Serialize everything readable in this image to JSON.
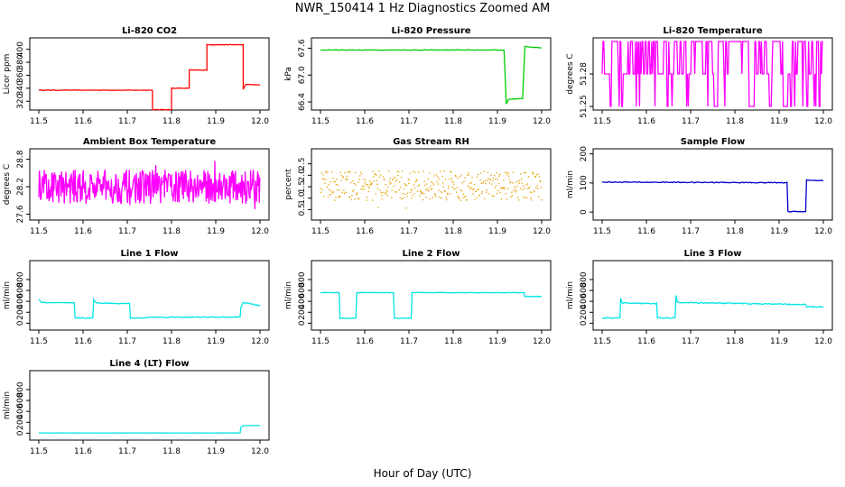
{
  "figure": {
    "title": "NWR_150414  1 Hz Diagnostics Zoomed AM",
    "xlabel": "Hour of Day (UTC)"
  },
  "chart_data": [
    {
      "type": "line",
      "title": "Li-820 CO2",
      "ylabel": "Licor ppm",
      "color": "#ff0000",
      "xlim": [
        11.5,
        12.0
      ],
      "ylim": [
        312,
        412
      ],
      "xticks": [
        "11.5",
        "11.6",
        "11.7",
        "11.8",
        "11.9",
        "12.0"
      ],
      "yticks": [
        "320",
        "340",
        "360",
        "380",
        "400"
      ],
      "noise": 0.4,
      "points": [
        [
          11.5,
          337
        ],
        [
          11.757,
          337
        ],
        [
          11.757,
          307
        ],
        [
          11.8,
          307
        ],
        [
          11.8,
          340
        ],
        [
          11.84,
          340
        ],
        [
          11.84,
          368
        ],
        [
          11.88,
          368
        ],
        [
          11.88,
          407
        ],
        [
          11.962,
          407
        ],
        [
          11.962,
          338
        ],
        [
          11.968,
          346
        ],
        [
          12.0,
          345
        ]
      ]
    },
    {
      "type": "line",
      "title": "Li-820 Pressure",
      "ylabel": "kPa",
      "color": "#00cc00",
      "xlim": [
        11.5,
        12.0
      ],
      "ylim": [
        66.3,
        67.75
      ],
      "xticks": [
        "11.5",
        "11.6",
        "11.7",
        "11.8",
        "11.9",
        "12.0"
      ],
      "yticks": [
        "66.4",
        "67.0",
        "67.6"
      ],
      "noise": 0.006,
      "points": [
        [
          11.5,
          67.56
        ],
        [
          11.915,
          67.56
        ],
        [
          11.92,
          66.35
        ],
        [
          11.925,
          66.46
        ],
        [
          11.957,
          66.48
        ],
        [
          11.962,
          67.64
        ],
        [
          11.98,
          67.62
        ],
        [
          12.0,
          67.61
        ]
      ]
    },
    {
      "type": "line",
      "title": "Li-820 Temperature",
      "ylabel": "degrees C",
      "color": "#ff00ff",
      "xlim": [
        11.5,
        12.0
      ],
      "ylim": [
        51.25,
        51.31
      ],
      "xticks": [
        "11.5",
        "11.6",
        "11.7",
        "11.8",
        "11.9",
        "12.0"
      ],
      "yticks": [
        "51.25",
        "51.28"
      ],
      "levels": [
        51.25,
        51.28,
        51.31
      ],
      "points": []
    },
    {
      "type": "line",
      "title": "Ambient Box Temperature",
      "ylabel": "degrees C",
      "color": "#ff00ff",
      "xlim": [
        11.5,
        12.0
      ],
      "ylim": [
        27.55,
        28.95
      ],
      "xticks": [
        "11.5",
        "11.6",
        "11.7",
        "11.8",
        "11.9",
        "12.0"
      ],
      "yticks": [
        "27.6",
        "28.2",
        "28.8"
      ],
      "band": [
        27.8,
        28.55
      ],
      "spread": 28.2,
      "points": []
    },
    {
      "type": "scatter",
      "title": "Gas Stream RH",
      "ylabel": "percent",
      "color": "#e6a000",
      "xlim": [
        11.5,
        12.0
      ],
      "ylim": [
        0.2,
        3.0
      ],
      "xticks": [
        "11.5",
        "11.6",
        "11.7",
        "11.8",
        "11.9",
        "12.0"
      ],
      "yticks": [
        "0.5",
        "1.0",
        "1.5",
        "2.0",
        "2.5"
      ],
      "band": [
        0.9,
        2.2
      ],
      "spread": 1.55,
      "points": []
    },
    {
      "type": "line",
      "title": "Sample Flow",
      "ylabel": "ml/min",
      "color": "#0000cc",
      "xlim": [
        11.5,
        12.0
      ],
      "ylim": [
        -15,
        205
      ],
      "xticks": [
        "11.5",
        "11.6",
        "11.7",
        "11.8",
        "11.9",
        "12.0"
      ],
      "yticks": [
        "0",
        "100",
        "200"
      ],
      "noise": 1.5,
      "points": [
        [
          11.5,
          103
        ],
        [
          11.918,
          101
        ],
        [
          11.92,
          2
        ],
        [
          11.96,
          2
        ],
        [
          11.962,
          110
        ],
        [
          12.0,
          108
        ]
      ]
    },
    {
      "type": "line",
      "title": "Line 1 Flow",
      "ylabel": "ml/min",
      "color": "#00e5e5",
      "xlim": [
        11.5,
        12.0
      ],
      "ylim": [
        -60,
        1080
      ],
      "xticks": [
        "11.5",
        "11.6",
        "11.7",
        "11.8",
        "11.9",
        "12.0"
      ],
      "yticks": [
        "0",
        "200",
        "400",
        "600",
        "800"
      ],
      "noise": 8,
      "points": [
        [
          11.5,
          440
        ],
        [
          11.505,
          380
        ],
        [
          11.58,
          370
        ],
        [
          11.582,
          95
        ],
        [
          11.622,
          95
        ],
        [
          11.624,
          430
        ],
        [
          11.63,
          370
        ],
        [
          11.705,
          360
        ],
        [
          11.707,
          95
        ],
        [
          11.74,
          95
        ],
        [
          11.75,
          110
        ],
        [
          11.955,
          110
        ],
        [
          11.957,
          300
        ],
        [
          11.962,
          380
        ],
        [
          12.0,
          320
        ]
      ]
    },
    {
      "type": "line",
      "title": "Line 2 Flow",
      "ylabel": "ml/min",
      "color": "#00e5e5",
      "xlim": [
        11.5,
        12.0
      ],
      "ylim": [
        -60,
        1080
      ],
      "xticks": [
        "11.5",
        "11.6",
        "11.7",
        "11.8",
        "11.9",
        "12.0"
      ],
      "yticks": [
        "0",
        "200",
        "400",
        "600",
        "800"
      ],
      "noise": 5,
      "points": [
        [
          11.5,
          560
        ],
        [
          11.542,
          560
        ],
        [
          11.544,
          90
        ],
        [
          11.58,
          90
        ],
        [
          11.582,
          560
        ],
        [
          11.665,
          560
        ],
        [
          11.667,
          90
        ],
        [
          11.705,
          90
        ],
        [
          11.707,
          560
        ],
        [
          11.96,
          560
        ],
        [
          11.962,
          490
        ],
        [
          12.0,
          490
        ]
      ]
    },
    {
      "type": "line",
      "title": "Line 3 Flow",
      "ylabel": "ml/min",
      "color": "#00e5e5",
      "xlim": [
        11.5,
        12.0
      ],
      "ylim": [
        -60,
        1080
      ],
      "xticks": [
        "11.5",
        "11.6",
        "11.7",
        "11.8",
        "11.9",
        "12.0"
      ],
      "yticks": [
        "0",
        "200",
        "400",
        "600",
        "800"
      ],
      "noise": 10,
      "points": [
        [
          11.5,
          95
        ],
        [
          11.54,
          95
        ],
        [
          11.542,
          460
        ],
        [
          11.545,
          370
        ],
        [
          11.623,
          360
        ],
        [
          11.625,
          95
        ],
        [
          11.665,
          95
        ],
        [
          11.667,
          500
        ],
        [
          11.67,
          380
        ],
        [
          11.96,
          340
        ],
        [
          11.962,
          300
        ],
        [
          12.0,
          300
        ]
      ]
    },
    {
      "type": "line",
      "title": "Line 4 (LT) Flow",
      "ylabel": "ml/min",
      "color": "#00e5e5",
      "xlim": [
        11.5,
        12.0
      ],
      "ylim": [
        -60,
        1080
      ],
      "xticks": [
        "11.5",
        "11.6",
        "11.7",
        "11.8",
        "11.9",
        "12.0"
      ],
      "yticks": [
        "0",
        "200",
        "400",
        "600",
        "800"
      ],
      "noise": 1,
      "points": [
        [
          11.5,
          5
        ],
        [
          11.955,
          5
        ],
        [
          11.957,
          110
        ],
        [
          11.962,
          140
        ],
        [
          12.0,
          140
        ]
      ]
    }
  ]
}
